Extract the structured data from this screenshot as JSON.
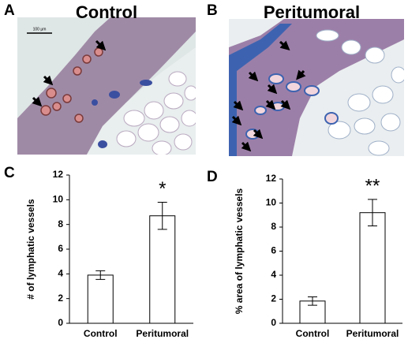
{
  "images": [
    {
      "panel": "A",
      "title": "Control",
      "scale_bar": "100 µm"
    },
    {
      "panel": "B",
      "title": "Peritumoral"
    }
  ],
  "chart_data": [
    {
      "type": "bar",
      "panel": "C",
      "y_label": "# of lymphatic vessels",
      "categories": [
        "Control",
        "Peritumoral"
      ],
      "values": [
        3.9,
        8.7
      ],
      "errors": [
        0.35,
        1.1
      ],
      "color": "#ffffff",
      "ylim": [
        0,
        12
      ],
      "yticks": [
        0,
        2,
        4,
        6,
        8,
        10,
        12
      ],
      "annotation": {
        "text": "*",
        "category": "Peritumoral"
      }
    },
    {
      "type": "bar",
      "panel": "D",
      "y_label": "% area of lymphatic vessels",
      "categories": [
        "Control",
        "Peritumoral"
      ],
      "values": [
        1.85,
        9.2
      ],
      "errors": [
        0.35,
        1.1
      ],
      "color": "#ffffff",
      "ylim": [
        0,
        12
      ],
      "yticks": [
        0,
        2,
        4,
        6,
        8,
        10,
        12
      ],
      "annotation": {
        "text": "**",
        "category": "Peritumoral"
      }
    }
  ]
}
